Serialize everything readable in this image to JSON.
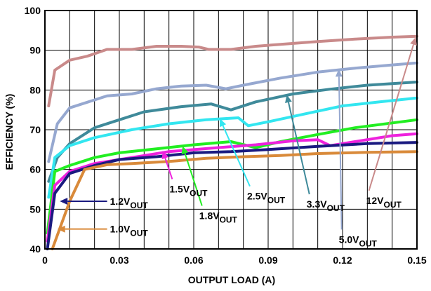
{
  "chart_data": {
    "type": "line",
    "xlabel": "OUTPUT LOAD (A)",
    "ylabel": "EFFICIENCY (%)",
    "xlim": [
      0,
      0.15
    ],
    "ylim": [
      40,
      100
    ],
    "grid": true,
    "x_ticks": [
      "0",
      "0.03",
      "0.06",
      "0.09",
      "0.12",
      "0.15"
    ],
    "y_ticks": [
      "40",
      "50",
      "60",
      "70",
      "80",
      "90",
      "100"
    ],
    "series": [
      {
        "name_main": "12V",
        "name_sub": "OUT",
        "color": "#c98a8a",
        "points": [
          [
            0.0015,
            76
          ],
          [
            0.004,
            85
          ],
          [
            0.01,
            87.5
          ],
          [
            0.017,
            88.5
          ],
          [
            0.025,
            90.2
          ],
          [
            0.035,
            90.2
          ],
          [
            0.045,
            91
          ],
          [
            0.055,
            91
          ],
          [
            0.062,
            90.8
          ],
          [
            0.066,
            90.2
          ],
          [
            0.075,
            90.2
          ],
          [
            0.085,
            91
          ],
          [
            0.095,
            91.5
          ],
          [
            0.11,
            92.2
          ],
          [
            0.125,
            92.8
          ],
          [
            0.14,
            93.3
          ],
          [
            0.15,
            93.5
          ]
        ]
      },
      {
        "name_main": "5.0V",
        "name_sub": "OUT",
        "color": "#96a8d0",
        "points": [
          [
            0.0015,
            62
          ],
          [
            0.005,
            71.5
          ],
          [
            0.01,
            75.5
          ],
          [
            0.02,
            77.5
          ],
          [
            0.025,
            78.5
          ],
          [
            0.035,
            79
          ],
          [
            0.045,
            80.3
          ],
          [
            0.055,
            81
          ],
          [
            0.065,
            81.2
          ],
          [
            0.073,
            80.3
          ],
          [
            0.08,
            81.2
          ],
          [
            0.095,
            83
          ],
          [
            0.11,
            84.5
          ],
          [
            0.125,
            85.5
          ],
          [
            0.14,
            86.3
          ],
          [
            0.15,
            86.8
          ]
        ]
      },
      {
        "name_main": "3.3V",
        "name_sub": "OUT",
        "color": "#3f8a9a",
        "points": [
          [
            0.0015,
            57
          ],
          [
            0.005,
            63
          ],
          [
            0.01,
            66.5
          ],
          [
            0.02,
            70.5
          ],
          [
            0.03,
            72.5
          ],
          [
            0.04,
            74.5
          ],
          [
            0.055,
            75.8
          ],
          [
            0.067,
            76.5
          ],
          [
            0.075,
            75
          ],
          [
            0.085,
            77
          ],
          [
            0.1,
            79
          ],
          [
            0.115,
            80.2
          ],
          [
            0.13,
            81.2
          ],
          [
            0.15,
            82
          ]
        ]
      },
      {
        "name_main": "2.5V",
        "name_sub": "OUT",
        "color": "#33e6f0",
        "points": [
          [
            0.0015,
            53
          ],
          [
            0.004,
            63
          ],
          [
            0.01,
            66
          ],
          [
            0.02,
            68
          ],
          [
            0.035,
            70
          ],
          [
            0.05,
            71.5
          ],
          [
            0.065,
            72.5
          ],
          [
            0.078,
            73
          ],
          [
            0.082,
            71
          ],
          [
            0.09,
            72
          ],
          [
            0.105,
            74
          ],
          [
            0.12,
            76
          ],
          [
            0.135,
            77
          ],
          [
            0.15,
            78
          ]
        ]
      },
      {
        "name_main": "1.8V",
        "name_sub": "OUT",
        "color": "#22ee22",
        "points": [
          [
            0.001,
            44
          ],
          [
            0.004,
            59.5
          ],
          [
            0.01,
            61
          ],
          [
            0.02,
            63
          ],
          [
            0.03,
            64.2
          ],
          [
            0.045,
            65.2
          ],
          [
            0.06,
            66.2
          ],
          [
            0.075,
            67
          ],
          [
            0.085,
            65.5
          ],
          [
            0.095,
            67
          ],
          [
            0.11,
            68.8
          ],
          [
            0.125,
            70.5
          ],
          [
            0.15,
            72.5
          ]
        ]
      },
      {
        "name_main": "1.5V",
        "name_sub": "OUT",
        "color": "#ee22dd",
        "points": [
          [
            0.001,
            42
          ],
          [
            0.004,
            56
          ],
          [
            0.01,
            59.5
          ],
          [
            0.02,
            61.5
          ],
          [
            0.035,
            63
          ],
          [
            0.05,
            64.5
          ],
          [
            0.07,
            65.5
          ],
          [
            0.085,
            66.2
          ],
          [
            0.1,
            67.2
          ],
          [
            0.11,
            67.5
          ],
          [
            0.115,
            66
          ],
          [
            0.125,
            67
          ],
          [
            0.14,
            68.5
          ],
          [
            0.15,
            69
          ]
        ]
      },
      {
        "name_main": "1.2V",
        "name_sub": "OUT",
        "color": "#1a1a80",
        "points": [
          [
            0.001,
            40
          ],
          [
            0.004,
            54
          ],
          [
            0.01,
            59
          ],
          [
            0.02,
            61
          ],
          [
            0.03,
            62.5
          ],
          [
            0.045,
            63.2
          ],
          [
            0.06,
            64.2
          ],
          [
            0.075,
            64.5
          ],
          [
            0.09,
            65
          ],
          [
            0.11,
            65.8
          ],
          [
            0.13,
            66.5
          ],
          [
            0.15,
            66.8
          ]
        ]
      },
      {
        "name_main": "1.0V",
        "name_sub": "OUT",
        "color": "#d98a3a",
        "points": [
          [
            0.003,
            40
          ],
          [
            0.01,
            52
          ],
          [
            0.016,
            60
          ],
          [
            0.025,
            61.2
          ],
          [
            0.035,
            61.5
          ],
          [
            0.05,
            62
          ],
          [
            0.065,
            62.8
          ],
          [
            0.08,
            63.2
          ],
          [
            0.095,
            63.5
          ],
          [
            0.11,
            64
          ],
          [
            0.13,
            64.3
          ],
          [
            0.15,
            64.5
          ]
        ]
      }
    ],
    "annotations": [
      {
        "series": 0,
        "text_main": "12V",
        "text_sub": "OUT",
        "label_x": 0.1295,
        "label_y": 52.2,
        "arrow_to": [
          0.1495,
          93.3
        ]
      },
      {
        "series": 1,
        "text_main": "5.0V",
        "text_sub": "OUT",
        "label_x": 0.1185,
        "label_y": 42.4,
        "arrow_to": [
          0.1185,
          85.3
        ]
      },
      {
        "series": 2,
        "text_main": "3.3V",
        "text_sub": "OUT",
        "label_x": 0.1055,
        "label_y": 51.3,
        "arrow_to": [
          0.0975,
          78.8
        ]
      },
      {
        "series": 3,
        "text_main": "2.5V",
        "text_sub": "OUT",
        "label_x": 0.0815,
        "label_y": 53.3,
        "arrow_to": [
          0.0705,
          72.8
        ]
      },
      {
        "series": 4,
        "text_main": "1.8V",
        "text_sub": "OUT",
        "label_x": 0.0622,
        "label_y": 48.4,
        "arrow_to": [
          0.0555,
          65.9
        ]
      },
      {
        "series": 5,
        "text_main": "1.5V",
        "text_sub": "OUT",
        "label_x": 0.0502,
        "label_y": 55.1,
        "arrow_to": [
          0.0475,
          64.7
        ]
      },
      {
        "series": 6,
        "text_main": "1.2V",
        "text_sub": "OUT",
        "label_x": 0.0262,
        "label_y": 52.0,
        "arrow_to": [
          0.006,
          52.0
        ]
      },
      {
        "series": 7,
        "text_main": "1.0V",
        "text_sub": "OUT",
        "label_x": 0.0262,
        "label_y": 45.0,
        "arrow_to": [
          0.005,
          45.0
        ]
      }
    ]
  }
}
